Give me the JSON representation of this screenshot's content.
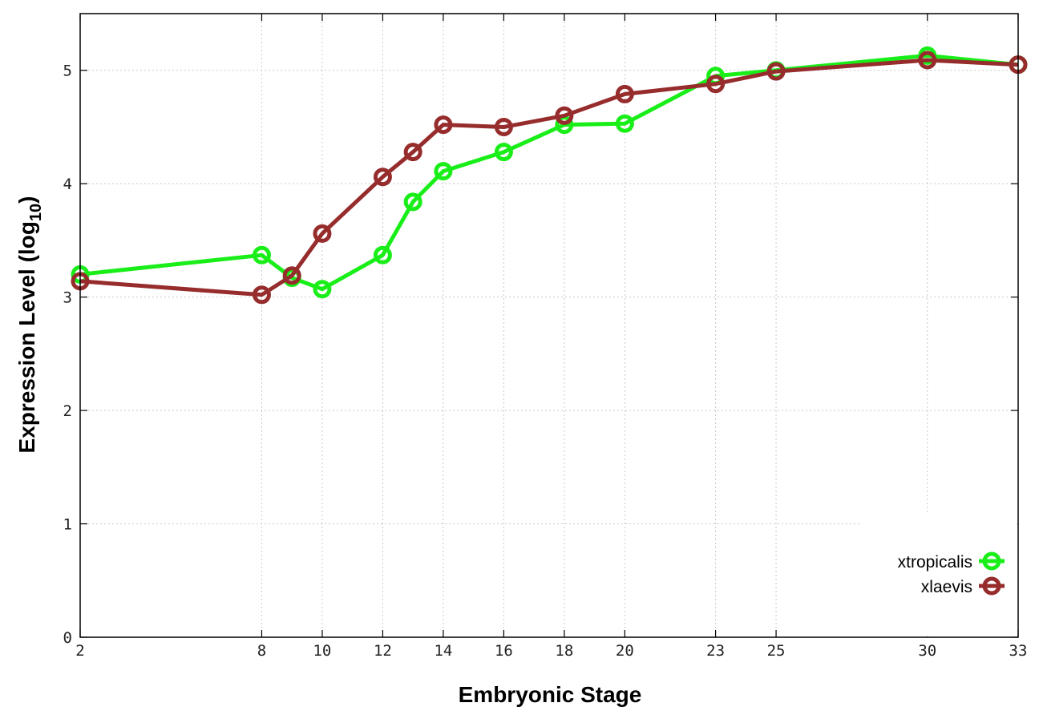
{
  "chart_data": {
    "type": "line",
    "xlabel": "Embryonic Stage",
    "ylabel_main": "Expression Level (log",
    "ylabel_sub": "10",
    "ylabel_close": ")",
    "x": [
      2,
      8,
      9,
      10,
      12,
      13,
      14,
      16,
      18,
      20,
      23,
      25,
      30,
      33
    ],
    "x_ticks": [
      2,
      8,
      10,
      12,
      14,
      16,
      18,
      20,
      23,
      25,
      30,
      33
    ],
    "y_ticks": [
      0,
      1,
      2,
      3,
      4,
      5
    ],
    "xlim": [
      2,
      33
    ],
    "ylim": [
      0,
      5.5
    ],
    "grid": true,
    "legend_position": "bottom-right",
    "series": [
      {
        "name": "xtropicalis",
        "color": "#19ee19",
        "values": [
          3.2,
          3.37,
          3.17,
          3.07,
          3.37,
          3.84,
          4.11,
          4.28,
          4.52,
          4.53,
          4.95,
          5.0,
          5.13,
          5.05
        ]
      },
      {
        "name": "xlaevis",
        "color": "#962c2c",
        "values": [
          3.14,
          3.02,
          3.19,
          3.56,
          4.06,
          4.28,
          4.52,
          4.5,
          4.6,
          4.79,
          4.88,
          4.99,
          5.09,
          5.05
        ]
      }
    ]
  }
}
